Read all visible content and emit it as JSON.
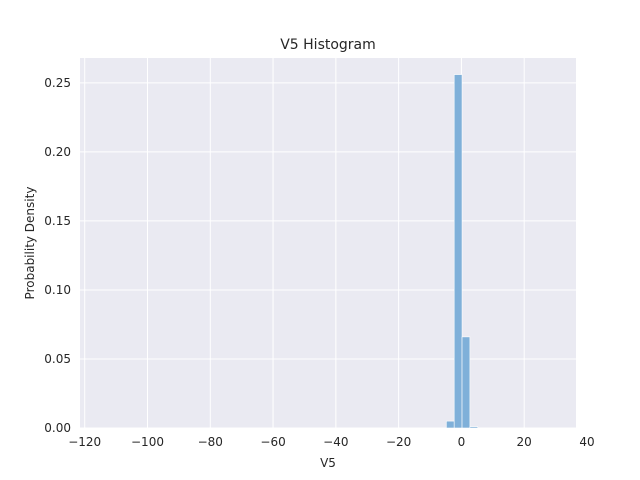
{
  "chart_data": {
    "type": "bar",
    "title": "V5 Histogram",
    "xlabel": "V5",
    "ylabel": "Probability Density",
    "xlim": [
      -121.5,
      36.5
    ],
    "ylim": [
      0,
      0.268
    ],
    "xticks": [
      -120,
      -100,
      -80,
      -60,
      -40,
      -20,
      0,
      20,
      40
    ],
    "xtick_labels": [
      "−120",
      "−100",
      "−80",
      "−60",
      "−40",
      "−20",
      "0",
      "20",
      "40"
    ],
    "yticks": [
      0.0,
      0.05,
      0.1,
      0.15,
      0.2,
      0.25
    ],
    "ytick_labels": [
      "0.00",
      "0.05",
      "0.10",
      "0.15",
      "0.20",
      "0.25"
    ],
    "grid": true,
    "bins": [
      {
        "x0": -4.8,
        "x1": -2.3,
        "value": 0.005
      },
      {
        "x0": -2.3,
        "x1": 0.2,
        "value": 0.256
      },
      {
        "x0": 0.2,
        "x1": 2.7,
        "value": 0.066
      },
      {
        "x0": 2.7,
        "x1": 5.2,
        "value": 0.001
      }
    ],
    "bar_color": "#7fb0d9",
    "background_color": "#eaeaf2",
    "grid_color": "#ffffff"
  }
}
